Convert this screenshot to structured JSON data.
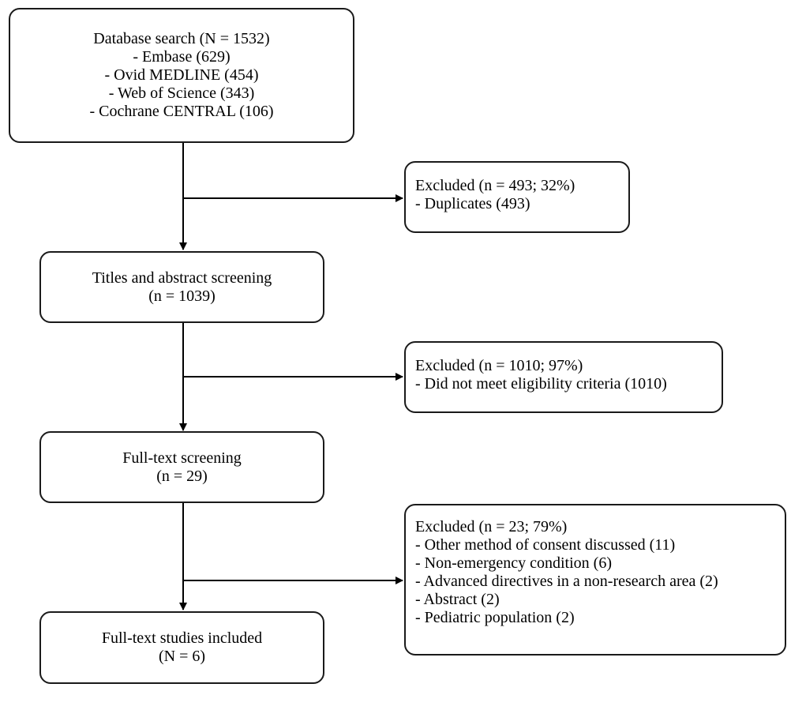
{
  "main_steps": [
    {
      "lines": [
        "Database search (N = 1532)",
        "- Embase (629)",
        "- Ovid MEDLINE (454)",
        "- Web of Science (343)",
        "- Cochrane CENTRAL (106)"
      ]
    },
    {
      "lines": [
        "Titles and abstract screening",
        "(n = 1039)"
      ]
    },
    {
      "lines": [
        "Full-text screening",
        "(n = 29)"
      ]
    },
    {
      "lines": [
        "Full-text studies included",
        "(N = 6)"
      ]
    }
  ],
  "exclusions": [
    {
      "lines": [
        "Excluded (n = 493; 32%)",
        "- Duplicates (493)"
      ]
    },
    {
      "lines": [
        "Excluded (n = 1010; 97%)",
        "- Did not meet eligibility criteria (1010)"
      ]
    },
    {
      "lines": [
        "Excluded (n = 23; 79%)",
        "- Other method of consent discussed (11)",
        "- Non-emergency condition (6)",
        "- Advanced directives in a non-research area (2)",
        "- Abstract (2)",
        "- Pediatric population (2)"
      ]
    }
  ]
}
